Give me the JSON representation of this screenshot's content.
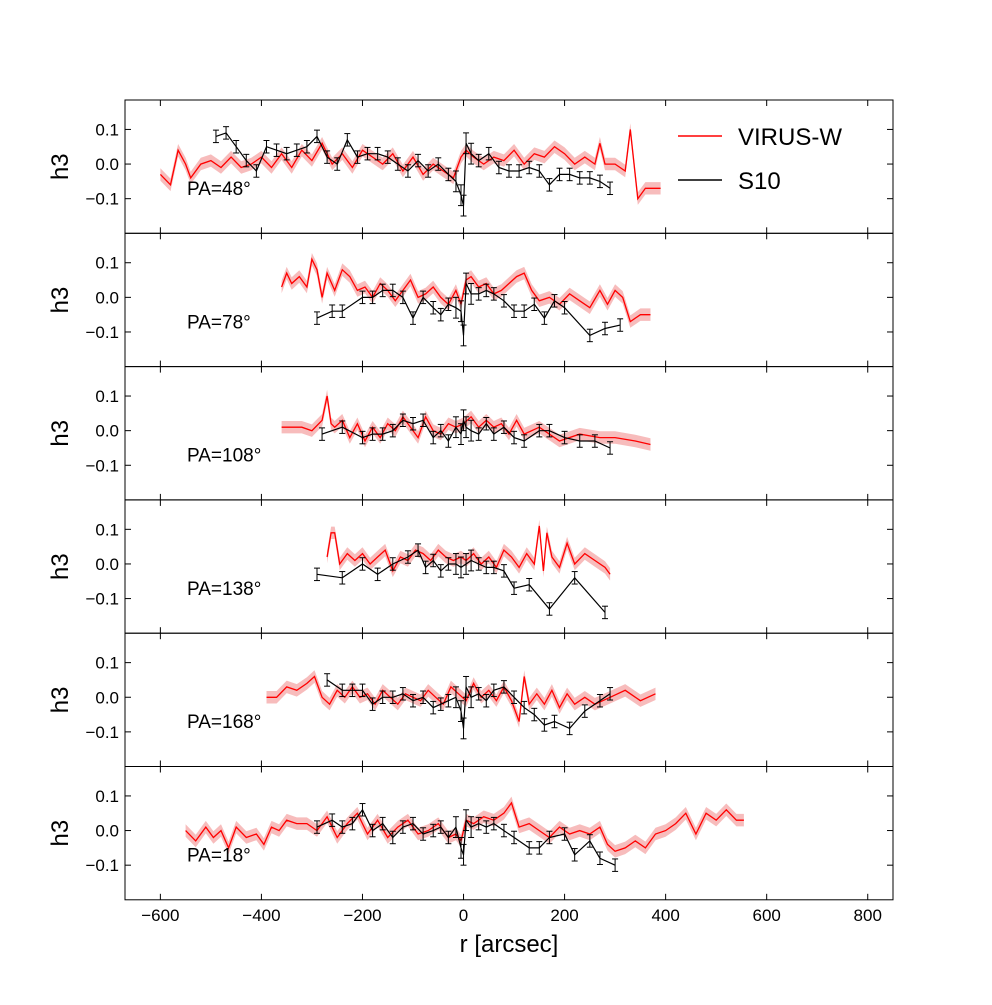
{
  "chart_data": {
    "type": "line",
    "xlabel": "r [arcsec]",
    "ylabel": "h3",
    "xlim": [
      -670,
      850
    ],
    "ylim": [
      -0.2,
      0.185
    ],
    "xticks": [
      -600,
      -400,
      -200,
      0,
      200,
      400,
      600,
      800
    ],
    "xtick_labels": [
      "−600",
      "−400",
      "−200",
      "0",
      "200",
      "400",
      "600",
      "800"
    ],
    "yticks": [
      0.1,
      0.0,
      -0.1
    ],
    "ytick_labels": [
      "0.1",
      "0.0",
      "−0.1"
    ],
    "legend": {
      "placement": "top-right",
      "entries": [
        {
          "label": "VIRUS-W",
          "color": "#ff0000"
        },
        {
          "label": "S10",
          "color": "#000000"
        }
      ]
    },
    "colors": {
      "virus": "#ff0000",
      "band": "#f4a6a6",
      "s10": "#000000"
    },
    "panels": [
      {
        "label": "PA=48°",
        "virus": {
          "x": [
            -600,
            -580,
            -565,
            -550,
            -540,
            -520,
            -500,
            -480,
            -460,
            -440,
            -420,
            -400,
            -380,
            -360,
            -340,
            -320,
            -300,
            -280,
            -260,
            -240,
            -220,
            -200,
            -180,
            -160,
            -140,
            -120,
            -100,
            -80,
            -60,
            -40,
            -20,
            -5,
            5,
            20,
            40,
            60,
            80,
            100,
            120,
            140,
            160,
            180,
            200,
            220,
            240,
            260,
            270,
            280,
            300,
            320,
            330,
            345,
            360,
            390
          ],
          "y": [
            -0.03,
            -0.06,
            0.04,
            0.0,
            -0.04,
            0.0,
            0.01,
            -0.01,
            0.02,
            -0.01,
            0.0,
            0.02,
            -0.01,
            0.03,
            -0.01,
            0.04,
            0.01,
            0.06,
            0.0,
            0.03,
            -0.01,
            0.04,
            0.02,
            0.0,
            0.03,
            -0.02,
            0.02,
            -0.03,
            0.0,
            -0.02,
            -0.04,
            0.02,
            0.04,
            0.02,
            0.0,
            0.02,
            0.01,
            0.04,
            0.0,
            0.03,
            0.02,
            0.05,
            0.03,
            0.0,
            0.02,
            0.0,
            0.06,
            0.0,
            0.0,
            -0.02,
            0.1,
            -0.1,
            -0.07,
            -0.07
          ]
        },
        "s10": {
          "x": [
            -490,
            -470,
            -450,
            -430,
            -410,
            -390,
            -370,
            -350,
            -330,
            -310,
            -290,
            -270,
            -250,
            -230,
            -210,
            -190,
            -170,
            -150,
            -130,
            -110,
            -90,
            -70,
            -50,
            -30,
            -15,
            -5,
            0,
            5,
            15,
            30,
            50,
            70,
            90,
            110,
            130,
            150,
            170,
            190,
            210,
            230,
            250,
            270,
            290
          ],
          "y": [
            0.08,
            0.09,
            0.05,
            0.01,
            -0.02,
            0.05,
            0.04,
            0.03,
            0.04,
            0.05,
            0.08,
            0.02,
            0.0,
            0.07,
            0.02,
            0.03,
            0.03,
            0.02,
            0.0,
            -0.02,
            0.01,
            -0.02,
            0.0,
            -0.03,
            -0.05,
            -0.09,
            -0.12,
            0.06,
            0.03,
            0.01,
            0.03,
            -0.01,
            -0.02,
            -0.02,
            -0.01,
            -0.02,
            -0.06,
            -0.03,
            -0.03,
            -0.04,
            -0.04,
            -0.05,
            -0.07
          ]
        }
      },
      {
        "label": "PA=78°",
        "virus": {
          "x": [
            -360,
            -350,
            -340,
            -325,
            -310,
            -300,
            -290,
            -280,
            -270,
            -255,
            -240,
            -225,
            -210,
            -195,
            -180,
            -165,
            -150,
            -135,
            -120,
            -105,
            -90,
            -75,
            -60,
            -45,
            -30,
            -15,
            -5,
            5,
            15,
            30,
            45,
            60,
            75,
            90,
            105,
            120,
            135,
            150,
            170,
            190,
            210,
            230,
            250,
            270,
            285,
            300,
            315,
            330,
            350,
            370
          ],
          "y": [
            0.03,
            0.07,
            0.04,
            0.06,
            0.03,
            0.11,
            0.08,
            0.0,
            0.07,
            0.02,
            0.08,
            0.06,
            0.02,
            0.03,
            0.0,
            0.04,
            0.02,
            -0.01,
            0.02,
            0.05,
            0.0,
            0.01,
            0.03,
            0.0,
            -0.02,
            0.02,
            -0.02,
            0.05,
            0.06,
            0.03,
            0.04,
            0.01,
            0.02,
            0.04,
            0.06,
            0.07,
            0.02,
            -0.01,
            0.0,
            -0.02,
            0.01,
            -0.01,
            -0.03,
            0.02,
            -0.02,
            0.02,
            0.0,
            -0.07,
            -0.05,
            -0.05
          ]
        },
        "s10": {
          "x": [
            -290,
            -260,
            -240,
            -200,
            -180,
            -160,
            -140,
            -120,
            -100,
            -80,
            -60,
            -45,
            -30,
            -15,
            -5,
            0,
            5,
            15,
            30,
            45,
            60,
            80,
            100,
            120,
            140,
            160,
            180,
            200,
            250,
            280,
            310
          ],
          "y": [
            -0.06,
            -0.04,
            -0.04,
            0.0,
            0.0,
            0.02,
            0.02,
            0.0,
            -0.06,
            0.0,
            -0.03,
            -0.05,
            -0.02,
            -0.03,
            -0.04,
            -0.11,
            0.04,
            0.01,
            0.01,
            0.02,
            0.01,
            -0.01,
            -0.04,
            -0.04,
            -0.02,
            -0.06,
            -0.01,
            -0.03,
            -0.11,
            -0.09,
            -0.08
          ]
        }
      },
      {
        "label": "PA=108°",
        "virus": {
          "x": [
            -360,
            -320,
            -300,
            -280,
            -270,
            -262,
            -255,
            -240,
            -225,
            -210,
            -195,
            -180,
            -165,
            -150,
            -135,
            -120,
            -105,
            -90,
            -75,
            -60,
            -45,
            -30,
            -15,
            0,
            15,
            30,
            45,
            60,
            75,
            90,
            105,
            120,
            150,
            190,
            230,
            270,
            300,
            340,
            370
          ],
          "y": [
            0.01,
            0.01,
            0.0,
            0.03,
            0.1,
            0.02,
            0.01,
            0.03,
            -0.02,
            0.02,
            -0.03,
            0.01,
            -0.02,
            0.02,
            0.0,
            0.04,
            0.01,
            -0.02,
            0.04,
            0.0,
            -0.01,
            0.02,
            0.01,
            0.02,
            0.04,
            0.01,
            0.03,
            0.01,
            0.02,
            -0.01,
            0.03,
            -0.01,
            0.01,
            -0.03,
            -0.01,
            -0.02,
            -0.02,
            -0.03,
            -0.04
          ]
        },
        "s10": {
          "x": [
            -280,
            -240,
            -200,
            -180,
            -160,
            -140,
            -120,
            -100,
            -80,
            -60,
            -45,
            -30,
            -15,
            -5,
            0,
            5,
            15,
            30,
            45,
            60,
            80,
            100,
            120,
            150,
            170,
            200,
            230,
            260,
            290
          ],
          "y": [
            -0.01,
            0.01,
            -0.02,
            -0.01,
            -0.01,
            0.0,
            0.03,
            0.02,
            0.03,
            -0.02,
            0.0,
            -0.03,
            0.01,
            -0.01,
            0.03,
            0.01,
            0.0,
            -0.01,
            0.02,
            -0.01,
            0.01,
            -0.02,
            -0.03,
            0.0,
            0.0,
            -0.02,
            -0.03,
            -0.03,
            -0.05
          ]
        }
      },
      {
        "label": "PA=138°",
        "virus": {
          "x": [
            -270,
            -262,
            -255,
            -245,
            -230,
            -215,
            -200,
            -185,
            -170,
            -155,
            -140,
            -125,
            -110,
            -95,
            -80,
            -65,
            -50,
            -35,
            -20,
            -5,
            5,
            20,
            35,
            50,
            65,
            80,
            95,
            110,
            125,
            140,
            150,
            158,
            165,
            175,
            190,
            205,
            220,
            240,
            260,
            280,
            290
          ],
          "y": [
            0.02,
            0.09,
            0.09,
            0.0,
            0.03,
            0.01,
            0.03,
            0.0,
            0.02,
            0.04,
            -0.02,
            0.02,
            0.01,
            0.04,
            0.03,
            0.01,
            0.04,
            0.02,
            0.01,
            0.02,
            0.01,
            0.03,
            0.0,
            0.02,
            -0.01,
            0.04,
            0.02,
            -0.01,
            0.03,
            0.0,
            0.11,
            -0.02,
            0.09,
            0.02,
            -0.01,
            0.06,
            0.0,
            0.03,
            0.01,
            -0.01,
            -0.03
          ]
        },
        "s10": {
          "x": [
            -290,
            -240,
            -200,
            -170,
            -140,
            -110,
            -90,
            -75,
            -60,
            -45,
            -30,
            -15,
            -5,
            5,
            15,
            30,
            45,
            60,
            80,
            100,
            130,
            170,
            220,
            280
          ],
          "y": [
            -0.03,
            -0.04,
            0.0,
            -0.03,
            0.0,
            0.02,
            0.04,
            -0.01,
            0.01,
            -0.02,
            0.0,
            0.0,
            -0.01,
            0.0,
            0.01,
            0.0,
            -0.01,
            -0.01,
            -0.02,
            -0.07,
            -0.06,
            -0.13,
            -0.04,
            -0.14
          ]
        }
      },
      {
        "label": "PA=168°",
        "virus": {
          "x": [
            -390,
            -370,
            -350,
            -330,
            -310,
            -295,
            -280,
            -265,
            -250,
            -235,
            -220,
            -205,
            -190,
            -175,
            -160,
            -145,
            -130,
            -115,
            -100,
            -85,
            -70,
            -55,
            -40,
            -25,
            -10,
            5,
            20,
            35,
            50,
            65,
            80,
            95,
            110,
            120,
            130,
            145,
            160,
            175,
            190,
            205,
            220,
            240,
            260,
            290,
            320,
            350,
            380
          ],
          "y": [
            0.0,
            0.0,
            0.03,
            0.02,
            0.04,
            0.06,
            0.0,
            -0.02,
            0.02,
            0.0,
            0.03,
            0.0,
            0.01,
            -0.02,
            0.02,
            0.0,
            -0.02,
            0.01,
            0.0,
            -0.01,
            0.02,
            0.0,
            -0.02,
            0.03,
            0.01,
            -0.01,
            0.04,
            0.0,
            0.02,
            -0.01,
            0.03,
            -0.01,
            -0.07,
            0.06,
            -0.02,
            0.01,
            -0.02,
            0.02,
            -0.03,
            0.01,
            -0.02,
            0.0,
            -0.02,
            0.0,
            0.02,
            -0.01,
            0.01
          ]
        },
        "s10": {
          "x": [
            -270,
            -240,
            -220,
            -200,
            -180,
            -160,
            -140,
            -120,
            -100,
            -80,
            -60,
            -45,
            -30,
            -15,
            -5,
            0,
            5,
            15,
            30,
            45,
            60,
            80,
            100,
            120,
            140,
            160,
            180,
            210,
            240,
            270,
            290
          ],
          "y": [
            0.05,
            0.02,
            0.02,
            0.02,
            -0.02,
            0.0,
            0.0,
            0.01,
            -0.01,
            0.0,
            -0.03,
            -0.02,
            -0.01,
            0.0,
            -0.04,
            -0.09,
            0.03,
            0.0,
            0.01,
            -0.01,
            0.02,
            0.03,
            0.0,
            -0.03,
            -0.05,
            -0.08,
            -0.07,
            -0.09,
            -0.04,
            -0.01,
            0.01
          ]
        }
      },
      {
        "label": "PA=18°",
        "virus": {
          "x": [
            -550,
            -530,
            -510,
            -495,
            -480,
            -465,
            -450,
            -430,
            -410,
            -395,
            -380,
            -365,
            -350,
            -330,
            -310,
            -290,
            -270,
            -250,
            -230,
            -210,
            -190,
            -170,
            -150,
            -130,
            -110,
            -90,
            -70,
            -50,
            -30,
            -15,
            -5,
            5,
            20,
            40,
            60,
            80,
            95,
            110,
            130,
            150,
            170,
            190,
            210,
            230,
            250,
            270,
            285,
            300,
            320,
            340,
            360,
            380,
            400,
            420,
            440,
            460,
            480,
            500,
            520,
            540,
            555
          ],
          "y": [
            0.0,
            -0.03,
            0.01,
            -0.02,
            0.0,
            -0.05,
            0.01,
            -0.02,
            -0.01,
            -0.04,
            0.01,
            0.0,
            0.03,
            0.02,
            0.02,
            0.0,
            0.04,
            -0.02,
            0.02,
            0.05,
            -0.01,
            0.03,
            -0.02,
            0.01,
            0.03,
            -0.01,
            0.0,
            0.02,
            -0.02,
            -0.01,
            -0.03,
            0.03,
            0.02,
            0.04,
            0.03,
            0.05,
            0.08,
            0.01,
            0.02,
            0.0,
            -0.02,
            0.01,
            -0.01,
            0.0,
            -0.01,
            0.01,
            -0.04,
            -0.06,
            -0.05,
            -0.03,
            -0.05,
            -0.01,
            0.0,
            0.02,
            0.05,
            -0.01,
            0.05,
            0.03,
            0.06,
            0.03,
            0.03
          ]
        },
        "s10": {
          "x": [
            -290,
            -260,
            -240,
            -220,
            -200,
            -180,
            -160,
            -140,
            -120,
            -100,
            -80,
            -60,
            -45,
            -30,
            -15,
            -5,
            0,
            5,
            15,
            30,
            45,
            60,
            80,
            100,
            130,
            150,
            170,
            200,
            220,
            250,
            270,
            300
          ],
          "y": [
            0.01,
            0.03,
            0.01,
            0.02,
            0.06,
            0.0,
            0.02,
            -0.02,
            0.01,
            0.02,
            -0.01,
            0.0,
            0.01,
            -0.02,
            0.01,
            -0.05,
            -0.07,
            0.03,
            0.01,
            0.02,
            0.01,
            0.02,
            0.0,
            -0.02,
            -0.05,
            -0.05,
            -0.02,
            -0.01,
            -0.07,
            -0.03,
            -0.08,
            -0.1
          ]
        }
      }
    ]
  }
}
